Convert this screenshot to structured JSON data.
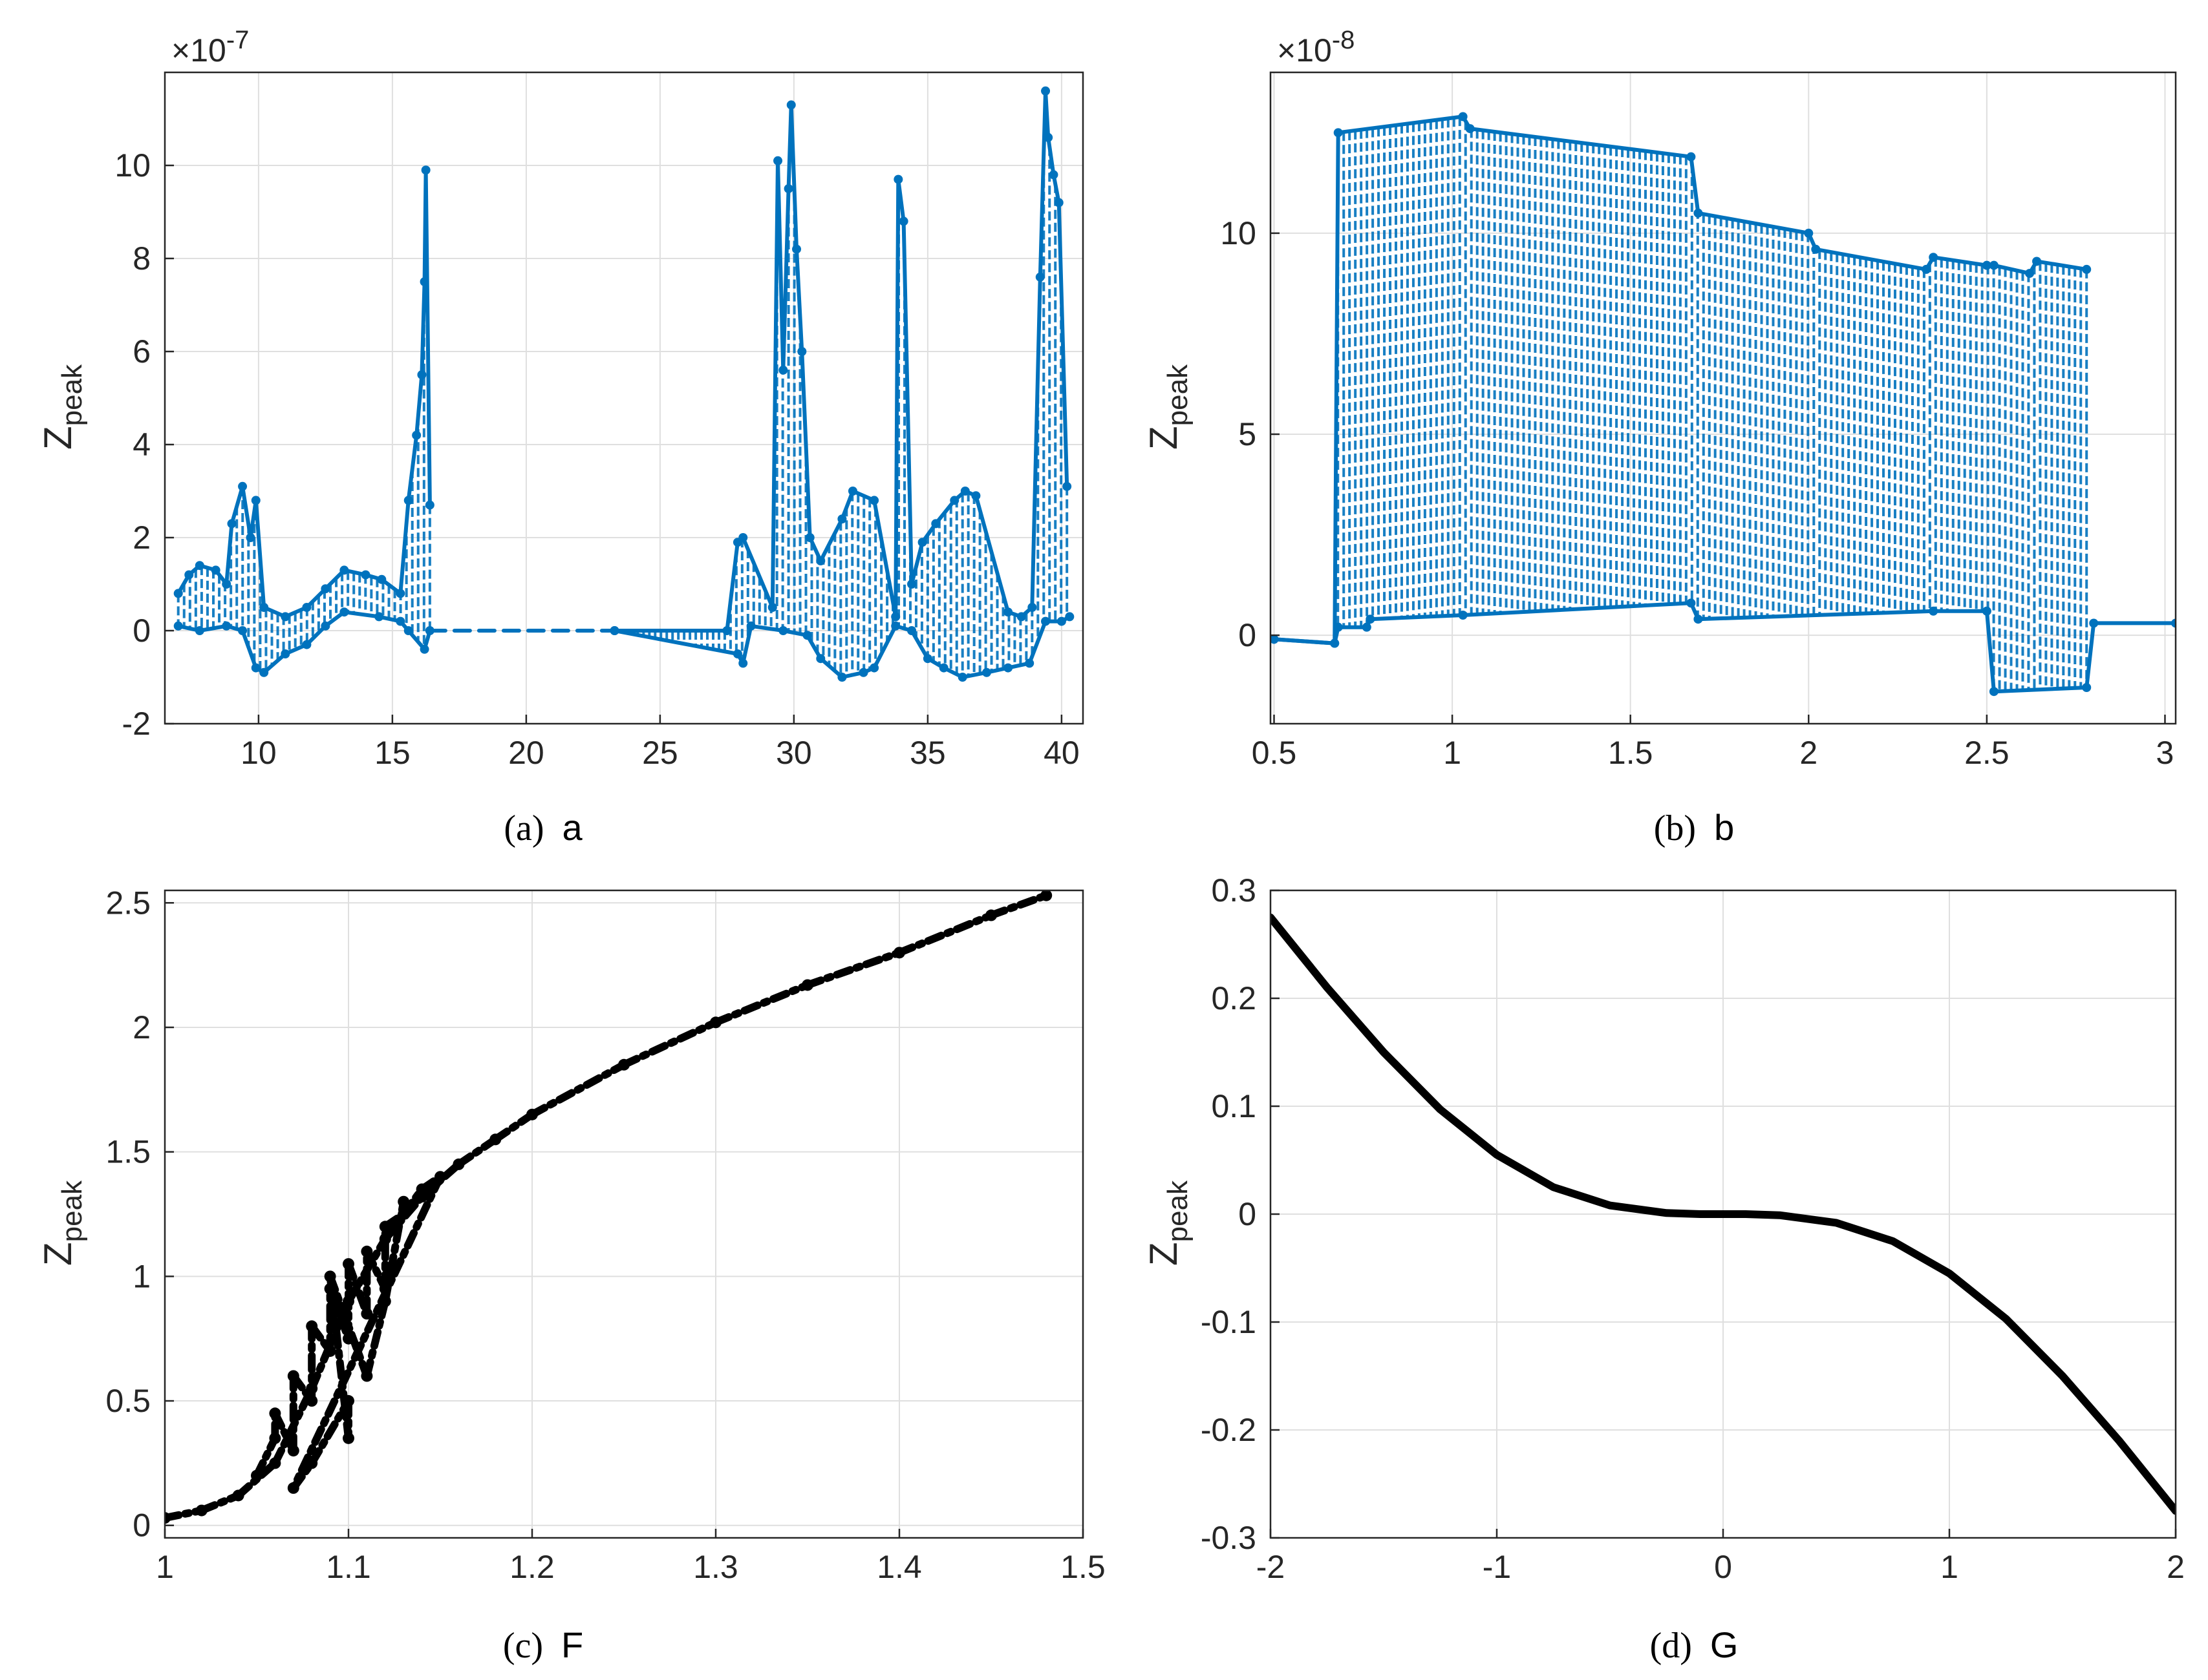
{
  "colors": {
    "blue": "#0072BD",
    "black": "#000000",
    "axis": "#262626",
    "grid": "#dfdfdf"
  },
  "chart_data": [
    {
      "type": "line",
      "caption_label": "(a)",
      "caption_var": "a",
      "xlabel": "a",
      "ylabel": "Z",
      "ylabel_sub": "peak",
      "exponent_mult": "×10",
      "exponent": "-7",
      "xlim": [
        6.5,
        40.8
      ],
      "ylim": [
        -2,
        12
      ],
      "xticks": [
        10,
        15,
        20,
        25,
        30,
        35,
        40
      ],
      "yticks": [
        -2,
        0,
        2,
        4,
        6,
        8,
        10
      ],
      "xtick_labels": [
        "10",
        "15",
        "20",
        "25",
        "30",
        "35",
        "40"
      ],
      "ytick_labels": [
        "-2",
        "0",
        "2",
        "4",
        "6",
        "8",
        "10"
      ],
      "color": "#0072BD",
      "series": [
        {
          "name": "upper envelope",
          "x": [
            7.0,
            7.4,
            7.8,
            8.4,
            8.8,
            9.0,
            9.4,
            9.7,
            9.9,
            10.2,
            11.0,
            11.8,
            12.5,
            13.2,
            14.0,
            14.6,
            15.3,
            15.6,
            15.9,
            16.1,
            16.2,
            16.25,
            16.4
          ],
          "y": [
            0.8,
            1.2,
            1.4,
            1.3,
            1.0,
            2.3,
            3.1,
            2.0,
            2.8,
            0.5,
            0.3,
            0.5,
            0.9,
            1.3,
            1.2,
            1.1,
            0.8,
            2.8,
            4.2,
            5.5,
            7.5,
            9.9,
            2.7
          ]
        },
        {
          "name": "lower envelope",
          "x": [
            7.0,
            7.8,
            8.8,
            9.4,
            9.9,
            10.2,
            11.0,
            11.8,
            12.5,
            13.2,
            14.5,
            15.3,
            15.6,
            16.2,
            16.4
          ],
          "y": [
            0.1,
            0.0,
            0.1,
            0.0,
            -0.8,
            -0.9,
            -0.5,
            -0.3,
            0.1,
            0.4,
            0.3,
            0.2,
            0.0,
            -0.4,
            0.0
          ]
        },
        {
          "name": "dashed gap",
          "x": [
            16.4,
            23.3
          ],
          "y": [
            0.0,
            0.0
          ]
        },
        {
          "name": "upper envelope 2",
          "x": [
            23.3,
            27.5,
            27.9,
            28.1,
            29.2,
            29.4,
            29.6,
            29.8,
            29.9,
            30.1,
            30.3,
            30.6,
            31.0,
            31.8,
            32.2,
            33.0,
            33.8,
            33.9,
            34.1,
            34.4,
            34.8,
            35.3,
            36.0,
            36.4,
            36.8,
            38.0,
            38.5,
            38.9,
            39.2,
            39.4,
            39.5,
            39.7,
            39.9,
            40.2
          ],
          "y": [
            0.0,
            0.0,
            1.9,
            2.0,
            0.5,
            10.1,
            5.6,
            9.5,
            11.3,
            8.2,
            6.0,
            2.0,
            1.5,
            2.4,
            3.0,
            2.8,
            0.3,
            9.7,
            8.8,
            1.0,
            1.9,
            2.3,
            2.8,
            3.0,
            2.9,
            0.4,
            0.3,
            0.5,
            7.6,
            11.6,
            10.6,
            9.8,
            9.2,
            3.1
          ]
        },
        {
          "name": "lower envelope 2",
          "x": [
            23.3,
            27.9,
            28.1,
            28.4,
            29.6,
            30.5,
            31.0,
            31.8,
            32.6,
            33.0,
            33.8,
            34.4,
            35.0,
            35.6,
            36.3,
            37.2,
            38.0,
            38.8,
            39.4,
            40.0,
            40.3
          ],
          "y": [
            0.0,
            -0.5,
            -0.7,
            0.1,
            0.0,
            -0.1,
            -0.6,
            -1.0,
            -0.9,
            -0.8,
            0.1,
            0.0,
            -0.6,
            -0.8,
            -1.0,
            -0.9,
            -0.8,
            -0.7,
            0.2,
            0.2,
            0.3
          ]
        }
      ]
    },
    {
      "type": "line",
      "caption_label": "(b)",
      "caption_var": "b",
      "xlabel": "b",
      "ylabel": "Z",
      "ylabel_sub": "peak",
      "exponent_mult": "×10",
      "exponent": "-8",
      "xlim": [
        0.49,
        3.03
      ],
      "ylim": [
        -2.2,
        14
      ],
      "xticks": [
        0.5,
        1,
        1.5,
        2,
        2.5,
        3
      ],
      "yticks": [
        0,
        5,
        10
      ],
      "xtick_labels": [
        "0.5",
        "1",
        "1.5",
        "2",
        "2.5",
        "3"
      ],
      "ytick_labels": [
        "0",
        "5",
        "10"
      ],
      "color": "#0072BD",
      "series": [
        {
          "name": "upper envelope",
          "x": [
            0.5,
            0.67,
            0.68,
            1.03,
            1.05,
            1.67,
            1.69,
            2.0,
            2.02,
            2.33,
            2.35,
            2.5,
            2.52,
            2.62,
            2.64,
            2.78
          ],
          "y": [
            -0.1,
            -0.2,
            12.5,
            12.9,
            12.6,
            11.9,
            10.5,
            10.0,
            9.6,
            9.1,
            9.4,
            9.2,
            9.2,
            9.0,
            9.3,
            9.1
          ]
        },
        {
          "name": "lower envelope",
          "x": [
            0.5,
            0.67,
            0.68,
            0.76,
            0.77,
            1.03,
            1.67,
            1.69,
            2.35,
            2.5,
            2.52,
            2.78,
            2.8,
            3.03
          ],
          "y": [
            -0.1,
            -0.2,
            0.2,
            0.2,
            0.4,
            0.5,
            0.8,
            0.4,
            0.6,
            0.6,
            -1.4,
            -1.3,
            0.3,
            0.3
          ]
        }
      ]
    },
    {
      "type": "scatter",
      "caption_label": "(c)",
      "caption_var": "F",
      "xlabel": "F",
      "ylabel": "Z",
      "ylabel_sub": "peak",
      "xlim": [
        1.0,
        1.5
      ],
      "ylim": [
        -0.05,
        2.55
      ],
      "xticks": [
        1,
        1.1,
        1.2,
        1.3,
        1.4,
        1.5
      ],
      "yticks": [
        0,
        0.5,
        1,
        1.5,
        2,
        2.5
      ],
      "xtick_labels": [
        "1",
        "1.1",
        "1.2",
        "1.3",
        "1.4",
        "1.5"
      ],
      "ytick_labels": [
        "0",
        "0.5",
        "1",
        "1.5",
        "2",
        "2.5"
      ],
      "color": "#000000",
      "series": [
        {
          "name": "main branch",
          "x": [
            1.0,
            1.02,
            1.04,
            1.06,
            1.08,
            1.1,
            1.12,
            1.14,
            1.16,
            1.18,
            1.2,
            1.25,
            1.3,
            1.35,
            1.4,
            1.45,
            1.48
          ],
          "y": [
            0.03,
            0.06,
            0.12,
            0.25,
            0.55,
            0.9,
            1.15,
            1.32,
            1.45,
            1.55,
            1.65,
            1.85,
            2.02,
            2.17,
            2.3,
            2.45,
            2.53
          ]
        },
        {
          "name": "scatter band",
          "x": [
            1.05,
            1.06,
            1.06,
            1.07,
            1.07,
            1.08,
            1.08,
            1.09,
            1.09,
            1.1,
            1.1,
            1.11,
            1.11,
            1.12,
            1.12,
            1.13,
            1.14,
            1.15,
            1.07,
            1.08,
            1.1,
            1.1,
            1.09,
            1.11,
            1.12,
            1.13
          ],
          "y": [
            0.2,
            0.35,
            0.45,
            0.3,
            0.6,
            0.5,
            0.8,
            0.7,
            0.95,
            0.75,
            1.05,
            0.85,
            1.1,
            0.95,
            1.2,
            1.25,
            1.35,
            1.4,
            0.15,
            0.25,
            0.5,
            0.35,
            1.0,
            0.6,
            0.9,
            1.3
          ]
        }
      ]
    },
    {
      "type": "line",
      "caption_label": "(d)",
      "caption_var": "G",
      "xlabel": "G",
      "ylabel": "Z",
      "ylabel_sub": "peak",
      "xlim": [
        -2,
        2
      ],
      "ylim": [
        -0.3,
        0.3
      ],
      "xticks": [
        -2,
        -1,
        0,
        1,
        2
      ],
      "yticks": [
        -0.3,
        -0.2,
        -0.1,
        0,
        0.1,
        0.2,
        0.3
      ],
      "xtick_labels": [
        "-2",
        "-1",
        "0",
        "1",
        "2"
      ],
      "ytick_labels": [
        "-0.3",
        "-0.2",
        "-0.1",
        "0",
        "0.1",
        "0.2",
        "0.3"
      ],
      "color": "#000000",
      "series": [
        {
          "name": "Zpeak(G)",
          "x": [
            -2.0,
            -1.75,
            -1.5,
            -1.25,
            -1.0,
            -0.75,
            -0.5,
            -0.25,
            -0.1,
            0.0,
            0.1,
            0.25,
            0.5,
            0.75,
            1.0,
            1.25,
            1.5,
            1.75,
            2.0
          ],
          "y": [
            0.275,
            0.21,
            0.15,
            0.097,
            0.055,
            0.025,
            0.008,
            0.001,
            0.0,
            0.0,
            0.0,
            -0.001,
            -0.008,
            -0.025,
            -0.055,
            -0.097,
            -0.15,
            -0.21,
            -0.275
          ]
        }
      ]
    }
  ]
}
